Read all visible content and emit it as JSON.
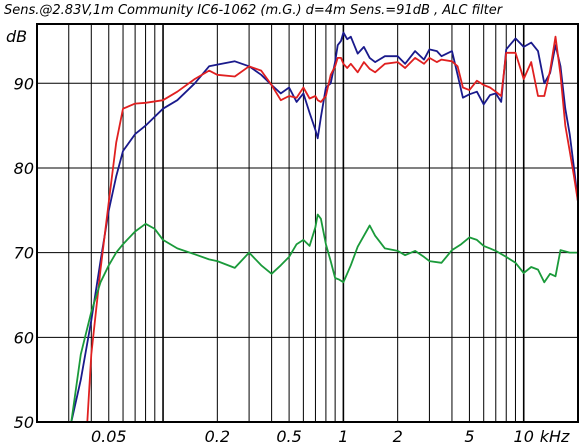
{
  "chart_data": {
    "type": "line",
    "title": "Sens.@2.83V,1m  Community IC6-1062 (m.G.) d=4m Sens.=91dB ,  ALC filter",
    "ylabel": "dB",
    "xunit": "kHz",
    "xscale": "log",
    "xlim": [
      0.02,
      20
    ],
    "ylim": [
      50,
      97
    ],
    "yticks": [
      50,
      60,
      70,
      80,
      90
    ],
    "xticks": [
      {
        "value": 0.05,
        "label": "0.05"
      },
      {
        "value": 0.2,
        "label": "0.2"
      },
      {
        "value": 0.5,
        "label": "0.5"
      },
      {
        "value": 1,
        "label": "1"
      },
      {
        "value": 2,
        "label": "2"
      },
      {
        "value": 5,
        "label": "5"
      },
      {
        "value": 10,
        "label": "10"
      }
    ],
    "xticks_unit_label": "kHz",
    "grid": true,
    "series": [
      {
        "color": "#1a1a8c",
        "x": [
          0.031,
          0.035,
          0.04,
          0.045,
          0.05,
          0.055,
          0.06,
          0.07,
          0.08,
          0.1,
          0.12,
          0.15,
          0.18,
          0.2,
          0.25,
          0.3,
          0.35,
          0.4,
          0.45,
          0.5,
          0.55,
          0.6,
          0.65,
          0.7,
          0.72,
          0.75,
          0.8,
          0.85,
          0.9,
          0.93,
          0.97,
          1.0,
          1.05,
          1.1,
          1.2,
          1.3,
          1.4,
          1.5,
          1.7,
          2.0,
          2.2,
          2.5,
          2.8,
          3.0,
          3.3,
          3.5,
          4.0,
          4.3,
          4.6,
          5.0,
          5.5,
          6.0,
          6.5,
          7.0,
          7.5,
          8.0,
          9.0,
          10.0,
          11.0,
          12.0,
          13.0,
          14.0,
          15.0,
          16.0,
          17.0,
          18.0,
          19.0,
          20.0
        ],
        "y": [
          50,
          55,
          62,
          69,
          75,
          79,
          82,
          84,
          85,
          87,
          88,
          90,
          92,
          92.2,
          92.6,
          92,
          91,
          89.8,
          88.8,
          89.5,
          87.8,
          88.8,
          86.5,
          84.5,
          83.5,
          86,
          89.5,
          90,
          92.5,
          94.5,
          95,
          96,
          95.2,
          95.5,
          93.5,
          94.3,
          93,
          92.5,
          93.2,
          93.2,
          92.3,
          93.8,
          92.8,
          94,
          93.8,
          93.2,
          93.8,
          91,
          88.3,
          88.7,
          89,
          87.5,
          88.6,
          88.8,
          87.8,
          94,
          95.3,
          94.3,
          94.8,
          93.8,
          90,
          91.2,
          94.5,
          92,
          87,
          84,
          80,
          76
        ]
      },
      {
        "color": "#e02020",
        "x": [
          0.038,
          0.04,
          0.045,
          0.05,
          0.055,
          0.06,
          0.07,
          0.08,
          0.1,
          0.12,
          0.15,
          0.18,
          0.2,
          0.25,
          0.3,
          0.35,
          0.4,
          0.45,
          0.5,
          0.55,
          0.6,
          0.65,
          0.7,
          0.72,
          0.75,
          0.8,
          0.85,
          0.9,
          0.93,
          0.97,
          1.0,
          1.05,
          1.1,
          1.2,
          1.3,
          1.4,
          1.5,
          1.7,
          2.0,
          2.2,
          2.5,
          2.8,
          3.0,
          3.3,
          3.5,
          4.0,
          4.3,
          4.6,
          5.0,
          5.5,
          6.0,
          6.5,
          7.0,
          7.5,
          8.0,
          9.0,
          10.0,
          11.0,
          12.0,
          13.0,
          14.0,
          15.0,
          16.0,
          17.0,
          18.0,
          19.0,
          20.0
        ],
        "y": [
          50,
          58,
          68,
          76,
          83,
          87,
          87.6,
          87.7,
          88,
          89,
          90.5,
          91.5,
          91,
          90.8,
          92,
          91.5,
          89.8,
          88,
          88.5,
          88.3,
          89.5,
          88.2,
          88.5,
          88,
          87.8,
          88.5,
          91,
          92,
          93,
          93,
          92.3,
          91.8,
          92.3,
          91.3,
          92.5,
          91.7,
          91.3,
          92.3,
          92.5,
          91.8,
          93,
          92.3,
          93,
          92.5,
          92.8,
          92.6,
          92,
          89.5,
          89.2,
          90.3,
          89.8,
          89.5,
          89,
          88.5,
          93.6,
          93.6,
          90.5,
          92.5,
          88.5,
          88.5,
          91.5,
          95.5,
          91,
          85,
          82,
          79,
          76
        ]
      },
      {
        "color": "#1a9a3a",
        "x": [
          0.031,
          0.035,
          0.04,
          0.045,
          0.05,
          0.055,
          0.06,
          0.07,
          0.08,
          0.09,
          0.1,
          0.12,
          0.15,
          0.18,
          0.2,
          0.25,
          0.3,
          0.35,
          0.4,
          0.45,
          0.5,
          0.55,
          0.6,
          0.65,
          0.7,
          0.72,
          0.75,
          0.8,
          0.85,
          0.9,
          0.95,
          1.0,
          1.1,
          1.2,
          1.4,
          1.5,
          1.7,
          2.0,
          2.2,
          2.5,
          2.8,
          3.0,
          3.5,
          4.0,
          4.5,
          5.0,
          5.5,
          6.0,
          6.5,
          7.0,
          8.0,
          9.0,
          10.0,
          11.0,
          12.0,
          13.0,
          14.0,
          15.0,
          16.0,
          18.0,
          20.0
        ],
        "y": [
          50,
          58,
          63,
          66.5,
          68.5,
          70,
          71,
          72.5,
          73.4,
          72.8,
          71.5,
          70.5,
          69.8,
          69.2,
          69,
          68.2,
          70,
          68.5,
          67.5,
          68.5,
          69.5,
          71,
          71.5,
          70.8,
          73,
          74.5,
          74,
          71,
          69,
          67,
          66.8,
          66.5,
          68.5,
          70.7,
          73.2,
          72,
          70.5,
          70.2,
          69.7,
          70.2,
          69.5,
          69,
          68.8,
          70.3,
          71,
          71.8,
          71.5,
          70.8,
          70.5,
          70.2,
          69.5,
          68.8,
          67.6,
          68.3,
          68,
          66.5,
          67.5,
          67.2,
          70.3,
          70,
          70
        ]
      }
    ]
  }
}
